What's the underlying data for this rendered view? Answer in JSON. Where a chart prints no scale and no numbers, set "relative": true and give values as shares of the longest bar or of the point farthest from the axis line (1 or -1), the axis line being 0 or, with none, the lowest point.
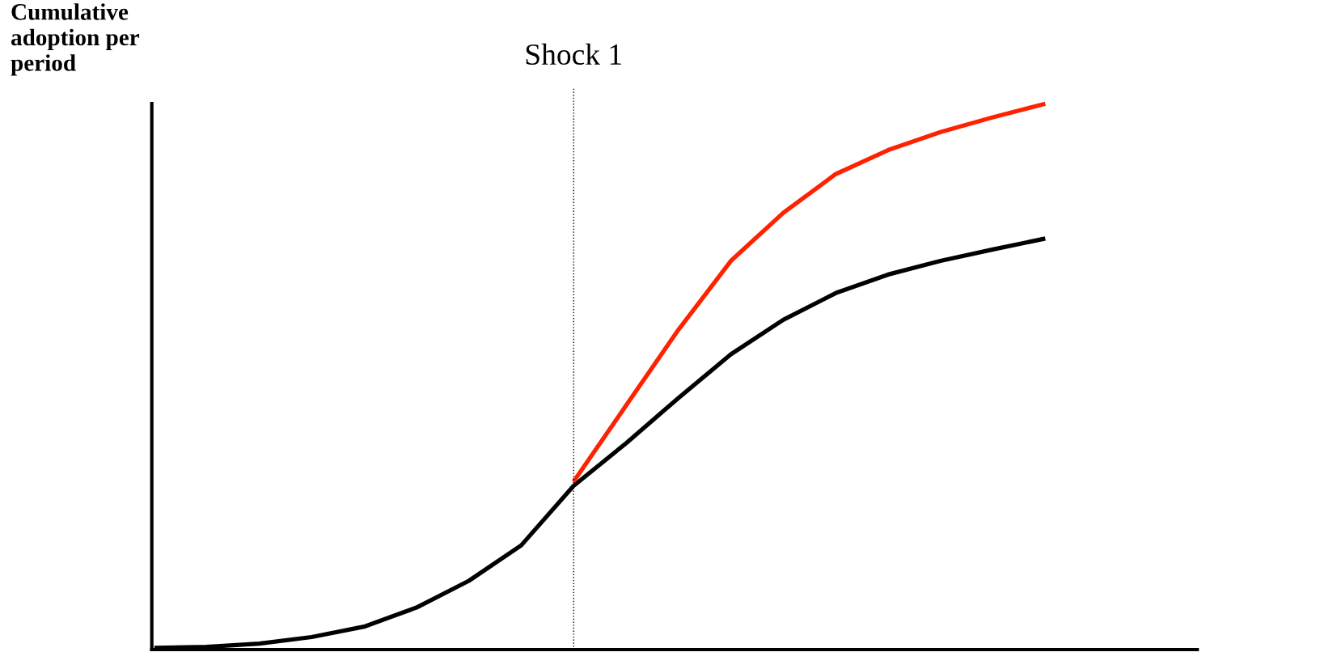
{
  "chart_data": {
    "type": "line",
    "relative": true,
    "ylabel": "Cumulative\nadoption per\nperiod",
    "categories": [
      null,
      null,
      null,
      null,
      null,
      null,
      null,
      null,
      null,
      null,
      null,
      null,
      null,
      null,
      null,
      null,
      null,
      null
    ],
    "series": [
      {
        "color": "#000000",
        "values": [
          0.003,
          0.005,
          0.011,
          0.023,
          0.042,
          0.077,
          0.126,
          0.191,
          0.3,
          0.378,
          0.461,
          0.541,
          0.604,
          0.653,
          0.687,
          0.712,
          0.733,
          0.753
        ]
      },
      {
        "color": "#ff2200",
        "values": [
          null,
          null,
          null,
          null,
          null,
          null,
          null,
          null,
          0.308,
          0.447,
          0.586,
          0.712,
          0.8,
          0.871,
          0.915,
          0.948,
          0.975,
          1
        ]
      }
    ],
    "annotations": [
      "Shock 1"
    ],
    "legend": false,
    "marker": "none",
    "line_style": "solid"
  }
}
